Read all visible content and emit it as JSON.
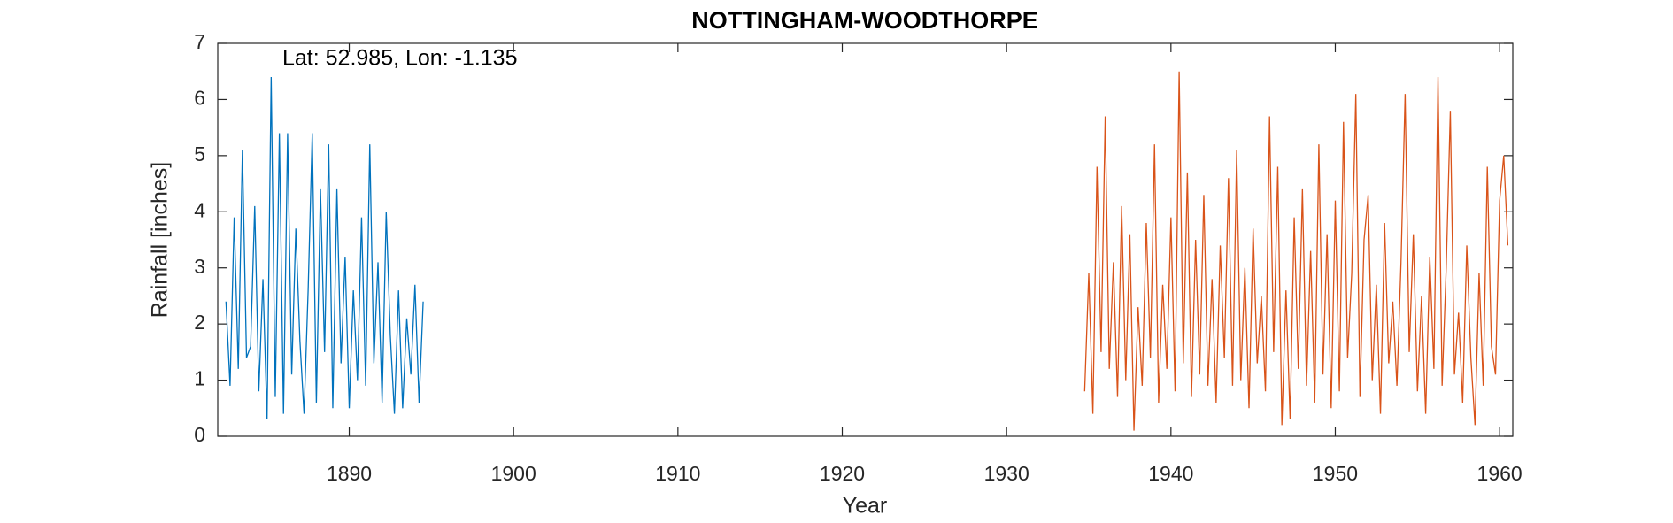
{
  "chart_data": {
    "type": "line",
    "title": "NOTTINGHAM-WOODTHORPE",
    "annotation": "Lat: 52.985, Lon: -1.135",
    "x_label": "Year",
    "y_label": "Rainfall [inches]",
    "xlim": [
      1882,
      1960.8
    ],
    "xticks": [
      1890,
      1900,
      1910,
      1920,
      1930,
      1940,
      1950,
      1960
    ],
    "ylim": [
      0,
      7
    ],
    "yticks": [
      0,
      1,
      2,
      3,
      4,
      5,
      6,
      7
    ],
    "grid": false,
    "series": [
      {
        "color": "#0072BD",
        "x": [
          1882.5,
          1882.75,
          1883,
          1883.25,
          1883.5,
          1883.75,
          1884,
          1884.25,
          1884.5,
          1884.75,
          1885,
          1885.25,
          1885.5,
          1885.75,
          1886,
          1886.25,
          1886.5,
          1886.75,
          1887,
          1887.25,
          1887.5,
          1887.75,
          1888,
          1888.25,
          1888.5,
          1888.75,
          1889,
          1889.25,
          1889.5,
          1889.75,
          1890,
          1890.25,
          1890.5,
          1890.75,
          1891,
          1891.25,
          1891.5,
          1891.75,
          1892,
          1892.25,
          1892.5,
          1892.75,
          1893,
          1893.25,
          1893.5,
          1893.75,
          1894,
          1894.25,
          1894.5
        ],
        "values": [
          2.4,
          0.9,
          3.9,
          1.2,
          5.1,
          1.4,
          1.6,
          4.1,
          0.8,
          2.8,
          0.3,
          6.4,
          0.7,
          5.4,
          0.4,
          5.4,
          1.1,
          3.7,
          1.7,
          0.4,
          2.6,
          5.4,
          0.6,
          4.4,
          1.5,
          5.2,
          0.5,
          4.4,
          1.3,
          3.2,
          0.5,
          2.6,
          1.0,
          3.9,
          0.9,
          5.2,
          1.3,
          3.1,
          0.6,
          4.0,
          1.8,
          0.4,
          2.6,
          0.5,
          2.1,
          1.1,
          2.7,
          0.6,
          2.4
        ]
      },
      {
        "color": "#D95319",
        "x": [
          1934.75,
          1935,
          1935.25,
          1935.5,
          1935.75,
          1936,
          1936.25,
          1936.5,
          1936.75,
          1937,
          1937.25,
          1937.5,
          1937.75,
          1938,
          1938.25,
          1938.5,
          1938.75,
          1939,
          1939.25,
          1939.5,
          1939.75,
          1940,
          1940.25,
          1940.5,
          1940.75,
          1941,
          1941.25,
          1941.5,
          1941.75,
          1942,
          1942.25,
          1942.5,
          1942.75,
          1943,
          1943.25,
          1943.5,
          1943.75,
          1944,
          1944.25,
          1944.5,
          1944.75,
          1945,
          1945.25,
          1945.5,
          1945.75,
          1946,
          1946.25,
          1946.5,
          1946.75,
          1947,
          1947.25,
          1947.5,
          1947.75,
          1948,
          1948.25,
          1948.5,
          1948.75,
          1949,
          1949.25,
          1949.5,
          1949.75,
          1950,
          1950.25,
          1950.5,
          1950.75,
          1951,
          1951.25,
          1951.5,
          1951.75,
          1952,
          1952.25,
          1952.5,
          1952.75,
          1953,
          1953.25,
          1953.5,
          1953.75,
          1954,
          1954.25,
          1954.5,
          1954.75,
          1955,
          1955.25,
          1955.5,
          1955.75,
          1956,
          1956.25,
          1956.5,
          1956.75,
          1957,
          1957.25,
          1957.5,
          1957.75,
          1958,
          1958.25,
          1958.5,
          1958.75,
          1959,
          1959.25,
          1959.5,
          1959.75,
          1960,
          1960.25,
          1960.5
        ],
        "values": [
          0.8,
          2.9,
          0.4,
          4.8,
          1.5,
          5.7,
          1.2,
          3.1,
          0.7,
          4.1,
          1.0,
          3.6,
          0.1,
          2.3,
          0.9,
          3.8,
          1.4,
          5.2,
          0.6,
          2.7,
          1.2,
          3.9,
          0.8,
          6.5,
          1.3,
          4.7,
          0.7,
          3.5,
          1.1,
          4.3,
          0.9,
          2.8,
          0.6,
          3.4,
          1.4,
          4.6,
          0.9,
          5.1,
          1.0,
          3.0,
          0.5,
          3.7,
          1.3,
          2.5,
          0.8,
          5.7,
          1.5,
          4.8,
          0.2,
          2.6,
          0.3,
          3.9,
          1.2,
          4.4,
          0.9,
          3.3,
          0.6,
          5.2,
          1.1,
          3.6,
          0.5,
          4.2,
          0.8,
          5.6,
          1.4,
          2.9,
          6.1,
          0.7,
          3.5,
          4.3,
          1.0,
          2.7,
          0.4,
          3.8,
          1.3,
          2.4,
          0.9,
          3.1,
          6.1,
          1.5,
          3.6,
          0.8,
          2.5,
          0.4,
          3.2,
          1.2,
          6.4,
          0.9,
          3.0,
          5.8,
          1.1,
          2.2,
          0.6,
          3.4,
          1.4,
          0.2,
          2.9,
          0.9,
          4.8,
          1.6,
          1.1,
          4.2,
          5.0,
          3.4
        ]
      }
    ]
  }
}
